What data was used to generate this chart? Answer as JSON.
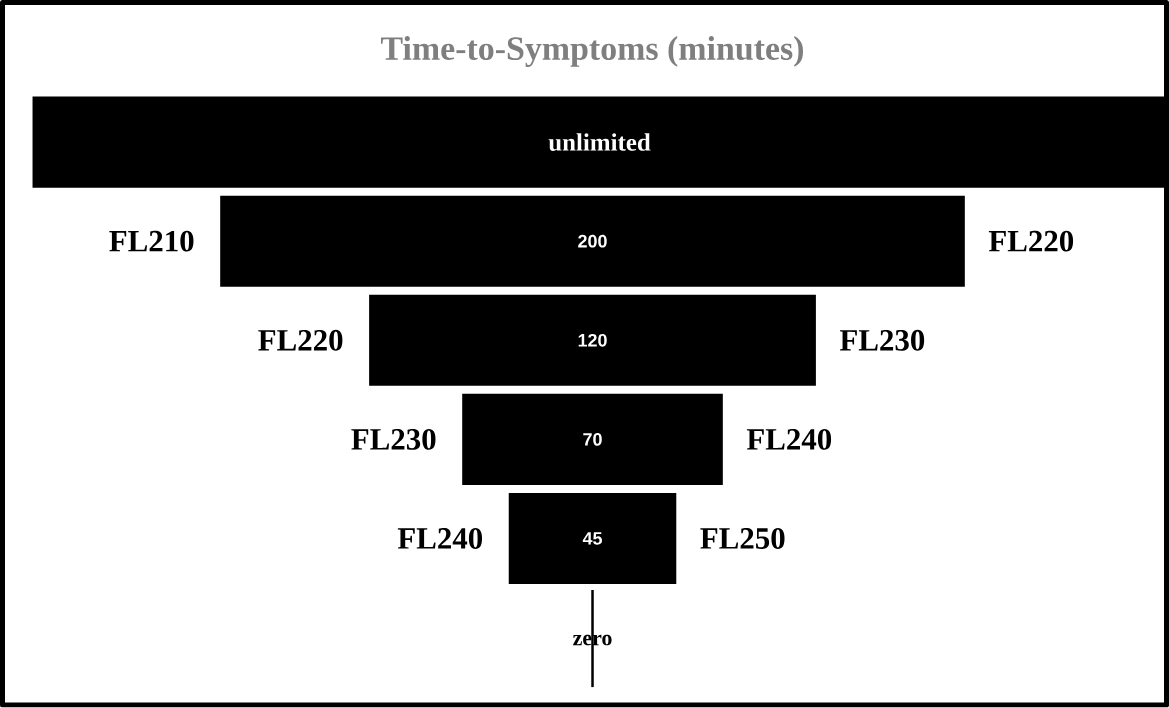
{
  "chart_data": {
    "type": "other",
    "title": "Time-to-Symptoms (minutes)",
    "categories": [
      null,
      null,
      null,
      null,
      null,
      null
    ],
    "values": [
      null,
      200,
      120,
      70,
      45,
      null
    ],
    "data_labels": true,
    "color": "#000000",
    "annotations": [
      "unlimited",
      "FL210",
      "FL220",
      "FL220",
      "FL230",
      "FL230",
      "FL240",
      "FL240",
      "FL250",
      "zero"
    ]
  }
}
